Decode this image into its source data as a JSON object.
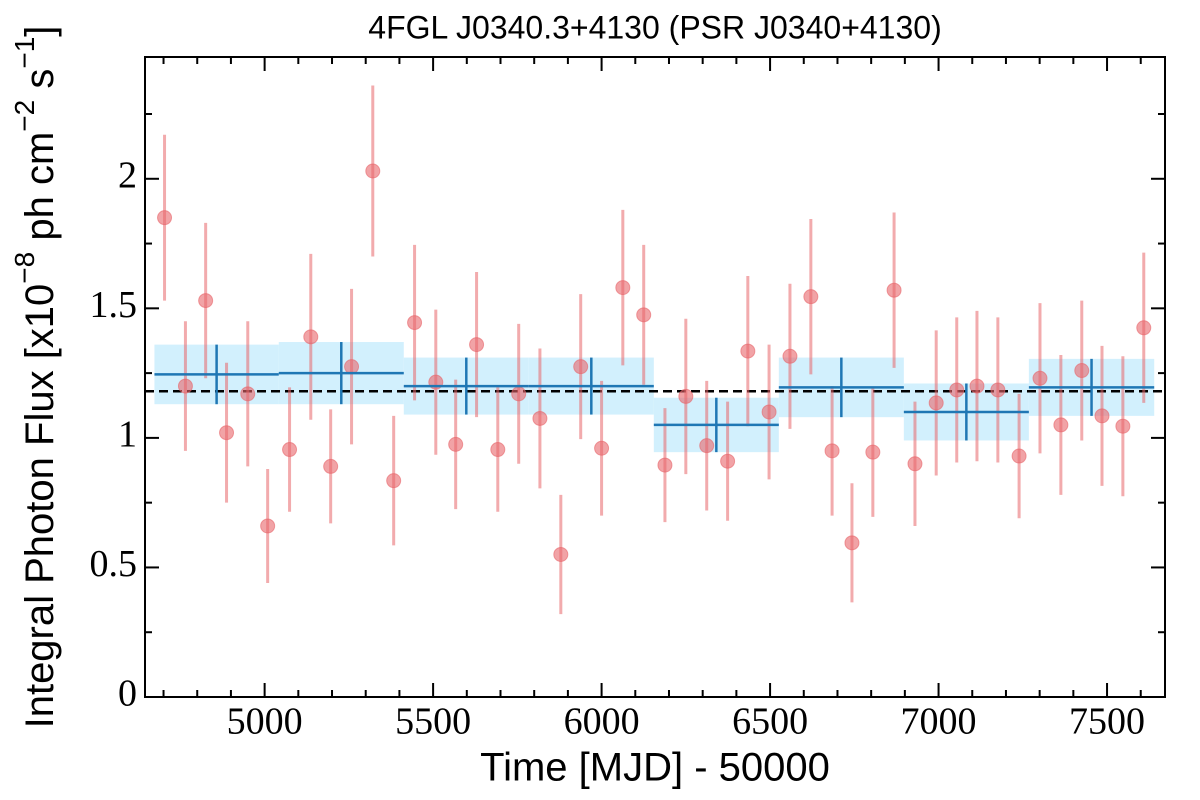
{
  "chart_data": {
    "type": "scatter",
    "title": "4FGL J0340.3+4130 (PSR J0340+4130)",
    "xlabel": "Time [MJD] - 50000",
    "ylabel": [
      "Integral Photon Flux [x10",
      "−8",
      " ph cm",
      "−2",
      " s",
      "−1",
      "]"
    ],
    "xlim": [
      4645,
      7672
    ],
    "ylim": [
      0,
      2.47
    ],
    "xticks": [
      5000,
      5500,
      6000,
      6500,
      7000,
      7500
    ],
    "yticks": [
      0,
      0.5,
      1,
      1.5,
      2
    ],
    "xminorticks": [
      4700,
      4800,
      4900,
      5100,
      5200,
      5300,
      5400,
      5600,
      5700,
      5800,
      5900,
      6100,
      6200,
      6300,
      6400,
      6600,
      6700,
      6800,
      6900,
      7100,
      7200,
      7300,
      7400,
      7600
    ],
    "yminorticks": [
      0.25,
      0.75,
      1.25,
      1.75,
      2.25
    ],
    "points": {
      "color": "#e8666a",
      "x": [
        4703,
        4765,
        4825,
        4887,
        4950,
        5009,
        5074,
        5137,
        5196,
        5258,
        5321,
        5383,
        5445,
        5508,
        5567,
        5629,
        5692,
        5754,
        5817,
        5879,
        5938,
        6000,
        6063,
        6125,
        6188,
        6250,
        6312,
        6374,
        6434,
        6497,
        6559,
        6621,
        6684,
        6743,
        6805,
        6868,
        6930,
        6993,
        7054,
        7114,
        7176,
        7239,
        7301,
        7363,
        7425,
        7485,
        7547,
        7609
      ],
      "values": [
        1.85,
        1.2,
        1.53,
        1.02,
        1.17,
        0.66,
        0.955,
        1.39,
        0.89,
        1.275,
        2.03,
        0.835,
        1.445,
        1.215,
        0.975,
        1.36,
        0.955,
        1.17,
        1.075,
        0.55,
        1.275,
        0.96,
        1.58,
        1.475,
        0.895,
        1.16,
        0.97,
        0.91,
        1.335,
        1.1,
        1.315,
        1.545,
        0.95,
        0.595,
        0.945,
        1.57,
        0.9,
        1.135,
        1.185,
        1.2,
        1.185,
        0.93,
        1.23,
        1.05,
        1.26,
        1.085,
        1.045,
        1.425
      ],
      "errors": [
        0.32,
        0.25,
        0.3,
        0.27,
        0.28,
        0.22,
        0.24,
        0.32,
        0.22,
        0.3,
        0.33,
        0.25,
        0.3,
        0.28,
        0.25,
        0.28,
        0.24,
        0.27,
        0.27,
        0.23,
        0.28,
        0.26,
        0.3,
        0.27,
        0.22,
        0.3,
        0.25,
        0.23,
        0.29,
        0.26,
        0.28,
        0.3,
        0.25,
        0.23,
        0.25,
        0.3,
        0.24,
        0.28,
        0.28,
        0.29,
        0.28,
        0.24,
        0.29,
        0.27,
        0.27,
        0.27,
        0.27,
        0.29
      ]
    },
    "bins": {
      "color": "#1f77b4",
      "band_color": "#cdeefd",
      "edges": [
        4673,
        5042,
        5413,
        5784,
        6155,
        6526,
        6897,
        7268,
        7640
      ],
      "values": [
        1.245,
        1.25,
        1.2,
        1.2,
        1.05,
        1.195,
        1.1,
        1.195
      ],
      "errors": [
        0.115,
        0.12,
        0.11,
        0.11,
        0.105,
        0.115,
        0.11,
        0.11
      ]
    },
    "mean": 1.18
  }
}
